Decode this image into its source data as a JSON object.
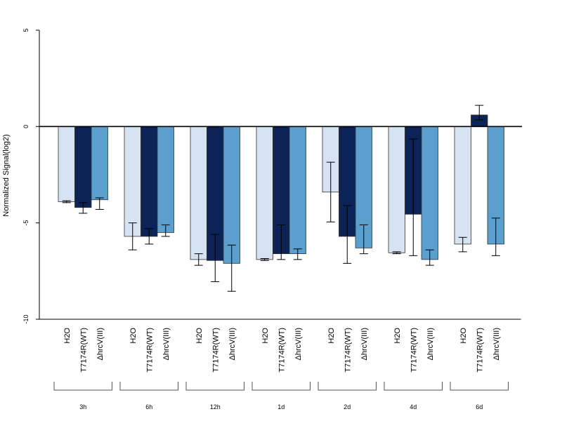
{
  "chart_data": {
    "type": "bar",
    "title": "",
    "xlabel": "",
    "ylabel": "Normalized Signal(log2)",
    "ylim": [
      -10,
      5
    ],
    "yticks": [
      -10,
      -5,
      0,
      5
    ],
    "bar_labels": [
      "H2O",
      "T7174R(WT)",
      "ΔhrcV(III)"
    ],
    "groups": [
      "3h",
      "6h",
      "12h",
      "1d",
      "2d",
      "4d",
      "6d"
    ],
    "series": [
      {
        "values": [
          -3.9,
          -5.7,
          -6.9,
          -6.9,
          -3.4,
          -6.55,
          -6.1
        ],
        "err_low": [
          -3.95,
          -6.4,
          -7.2,
          -6.95,
          -4.95,
          -6.6,
          -6.5
        ],
        "err_high": [
          -3.85,
          -5.0,
          -6.6,
          -6.85,
          -1.85,
          -6.5,
          -5.75
        ]
      },
      {
        "values": [
          -4.2,
          -5.7,
          -6.95,
          -6.6,
          -5.7,
          -4.55,
          0.6
        ],
        "err_low": [
          -4.5,
          -6.1,
          -8.05,
          -6.9,
          -7.1,
          -6.7,
          0.35
        ],
        "err_high": [
          -3.95,
          -5.3,
          -5.6,
          -5.1,
          -4.1,
          -0.65,
          1.1
        ]
      },
      {
        "values": [
          -3.8,
          -5.5,
          -7.1,
          -6.6,
          -6.3,
          -6.9,
          -6.1
        ],
        "err_low": [
          -4.3,
          -5.7,
          -8.55,
          -6.9,
          -6.6,
          -7.2,
          -6.7
        ],
        "err_high": [
          -3.7,
          -5.1,
          -6.15,
          -6.35,
          -5.1,
          -6.4,
          -4.75
        ]
      }
    ],
    "colors": [
      "#d5e3f3",
      "#0b2356",
      "#5b9fcf"
    ],
    "grid": false,
    "legend": "none"
  }
}
